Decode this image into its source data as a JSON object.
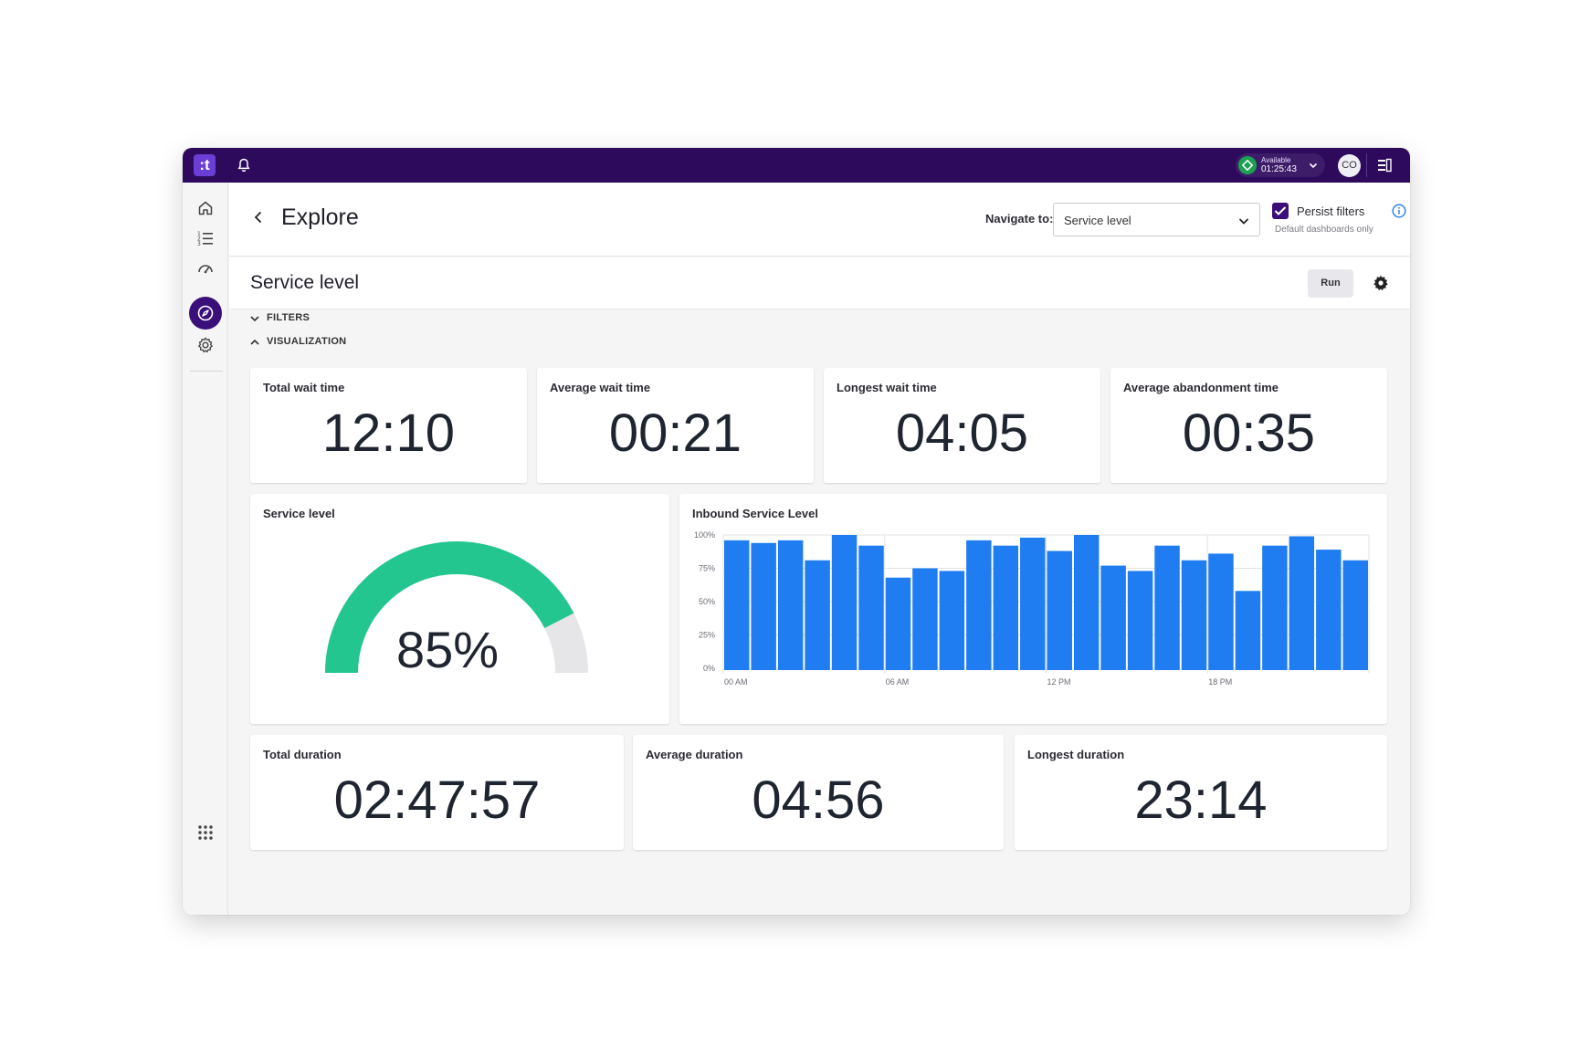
{
  "topbar": {
    "logo_text": ":t",
    "status_label": "Available",
    "status_time": "01:25:43",
    "avatar_initials": "CO"
  },
  "header": {
    "title": "Explore",
    "navigate_label": "Navigate to:",
    "navigate_value": "Service level",
    "persist_label": "Persist filters",
    "persist_hint": "Default dashboards only"
  },
  "section": {
    "title": "Service level",
    "run_label": "Run",
    "filters_label": "FILTERS",
    "visualization_label": "VISUALIZATION"
  },
  "metrics_top": [
    {
      "label": "Total wait time",
      "value": "12:10"
    },
    {
      "label": "Average wait time",
      "value": "00:21"
    },
    {
      "label": "Longest wait time",
      "value": "04:05"
    },
    {
      "label": "Average abandonment time",
      "value": "00:35"
    }
  ],
  "gauge": {
    "label": "Service level",
    "value_text": "85%",
    "fraction": 0.85,
    "fill_color": "#23c68e",
    "track_color": "#e6e6e8"
  },
  "metrics_bottom": [
    {
      "label": "Total duration",
      "value": "02:47:57"
    },
    {
      "label": "Average duration",
      "value": "04:56"
    },
    {
      "label": "Longest duration",
      "value": "23:14"
    }
  ],
  "chart_data": {
    "type": "bar",
    "title": "Inbound Service Level",
    "xlabel": "",
    "ylabel": "",
    "ylim": [
      0,
      100
    ],
    "y_ticks": [
      "0%",
      "25%",
      "50%",
      "75%",
      "100%"
    ],
    "y_tick_values": [
      0,
      25,
      50,
      75,
      100
    ],
    "x_tick_labels": [
      "00 AM",
      "06 AM",
      "12 PM",
      "18 PM"
    ],
    "x_tick_indices": [
      0,
      6,
      12,
      18
    ],
    "values": [
      96,
      94,
      96,
      81,
      100,
      92,
      68,
      75,
      73,
      96,
      92,
      98,
      88,
      100,
      77,
      73,
      92,
      81,
      86,
      58,
      92,
      99,
      89,
      81
    ],
    "bar_color": "#1f7cf1",
    "grid": true,
    "legend": "none"
  }
}
